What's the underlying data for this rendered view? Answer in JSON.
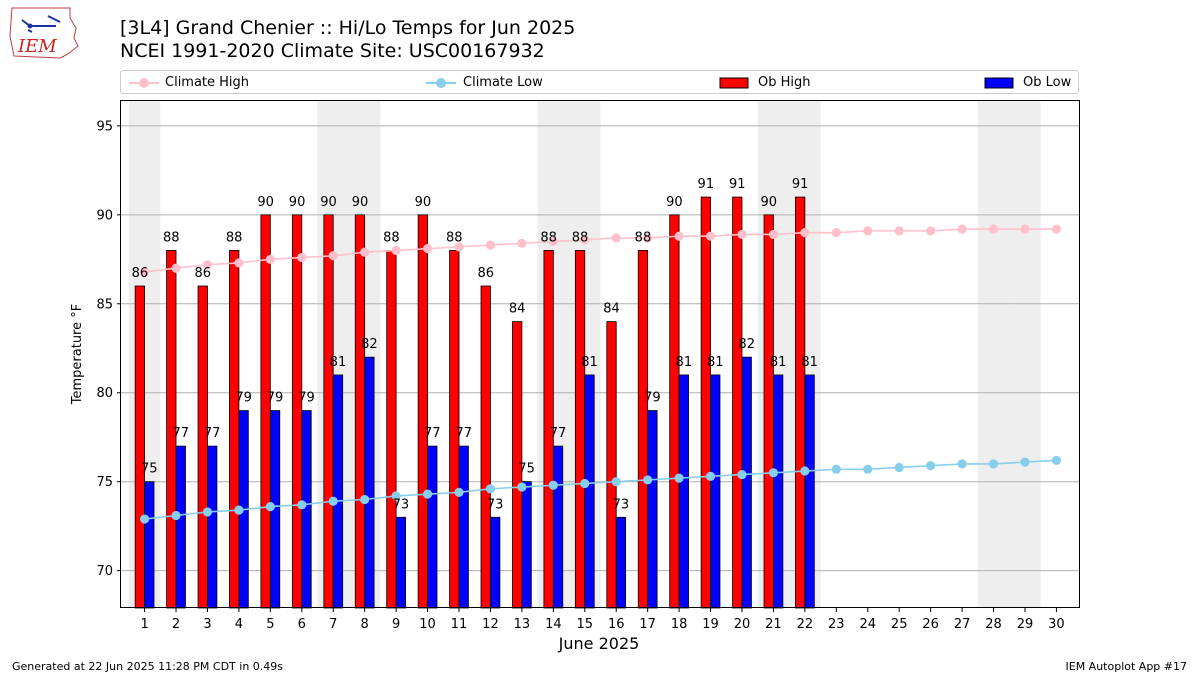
{
  "header": {
    "title_line1": "[3L4] Grand Chenier :: Hi/Lo Temps for Jun 2025",
    "title_line2": "NCEI 1991-2020 Climate Site: USC00167932",
    "logo_text": "IEM"
  },
  "legend": {
    "climate_high": "Climate High",
    "climate_low": "Climate Low",
    "ob_high": "Ob High",
    "ob_low": "Ob Low"
  },
  "colors": {
    "ob_high": "#ff0000",
    "ob_low": "#0000ff",
    "climate_high": "#ffc0cb",
    "climate_low": "#87ceeb",
    "weekend_shade": "#eeeeee",
    "grid": "#b0b0b0"
  },
  "chart_data": {
    "type": "bar",
    "xlabel": "June 2025",
    "ylabel": "Temperature °F",
    "ylim": [
      67.9,
      96.4
    ],
    "yticks": [
      70,
      75,
      80,
      85,
      90,
      95
    ],
    "grid": "horizontal",
    "legend_position": "top",
    "categories": [
      "1",
      "2",
      "3",
      "4",
      "5",
      "6",
      "7",
      "8",
      "9",
      "10",
      "11",
      "12",
      "13",
      "14",
      "15",
      "16",
      "17",
      "18",
      "19",
      "20",
      "21",
      "22",
      "23",
      "24",
      "25",
      "26",
      "27",
      "28",
      "29",
      "30"
    ],
    "weekend_days": [
      "1",
      "7",
      "8",
      "14",
      "15",
      "21",
      "22",
      "28",
      "29"
    ],
    "series": [
      {
        "name": "Ob High",
        "type": "bar",
        "values": [
          86,
          88,
          86,
          88,
          90,
          90,
          90,
          90,
          88,
          90,
          88,
          86,
          84,
          88,
          88,
          84,
          88,
          90,
          91,
          91,
          90,
          91,
          null,
          null,
          null,
          null,
          null,
          null,
          null,
          null
        ]
      },
      {
        "name": "Ob Low",
        "type": "bar",
        "values": [
          75,
          77,
          77,
          79,
          79,
          79,
          81,
          82,
          73,
          77,
          77,
          73,
          75,
          77,
          81,
          73,
          79,
          81,
          81,
          82,
          81,
          81,
          null,
          null,
          null,
          null,
          null,
          null,
          null,
          null
        ]
      },
      {
        "name": "Climate High",
        "type": "line",
        "values": [
          86.8,
          87.0,
          87.2,
          87.3,
          87.5,
          87.6,
          87.7,
          87.9,
          88.0,
          88.1,
          88.2,
          88.3,
          88.4,
          88.5,
          88.6,
          88.7,
          88.7,
          88.8,
          88.8,
          88.9,
          88.9,
          89.0,
          89.0,
          89.1,
          89.1,
          89.1,
          89.2,
          89.2,
          89.2,
          89.2
        ]
      },
      {
        "name": "Climate Low",
        "type": "line",
        "values": [
          72.9,
          73.1,
          73.3,
          73.4,
          73.6,
          73.7,
          73.9,
          74.0,
          74.2,
          74.3,
          74.4,
          74.6,
          74.7,
          74.8,
          74.9,
          75.0,
          75.1,
          75.2,
          75.3,
          75.4,
          75.5,
          75.6,
          75.7,
          75.7,
          75.8,
          75.9,
          76.0,
          76.0,
          76.1,
          76.2
        ]
      }
    ]
  },
  "footer": {
    "left": "Generated at 22 Jun 2025 11:28 PM CDT in 0.49s",
    "right": "IEM Autoplot App #17"
  }
}
